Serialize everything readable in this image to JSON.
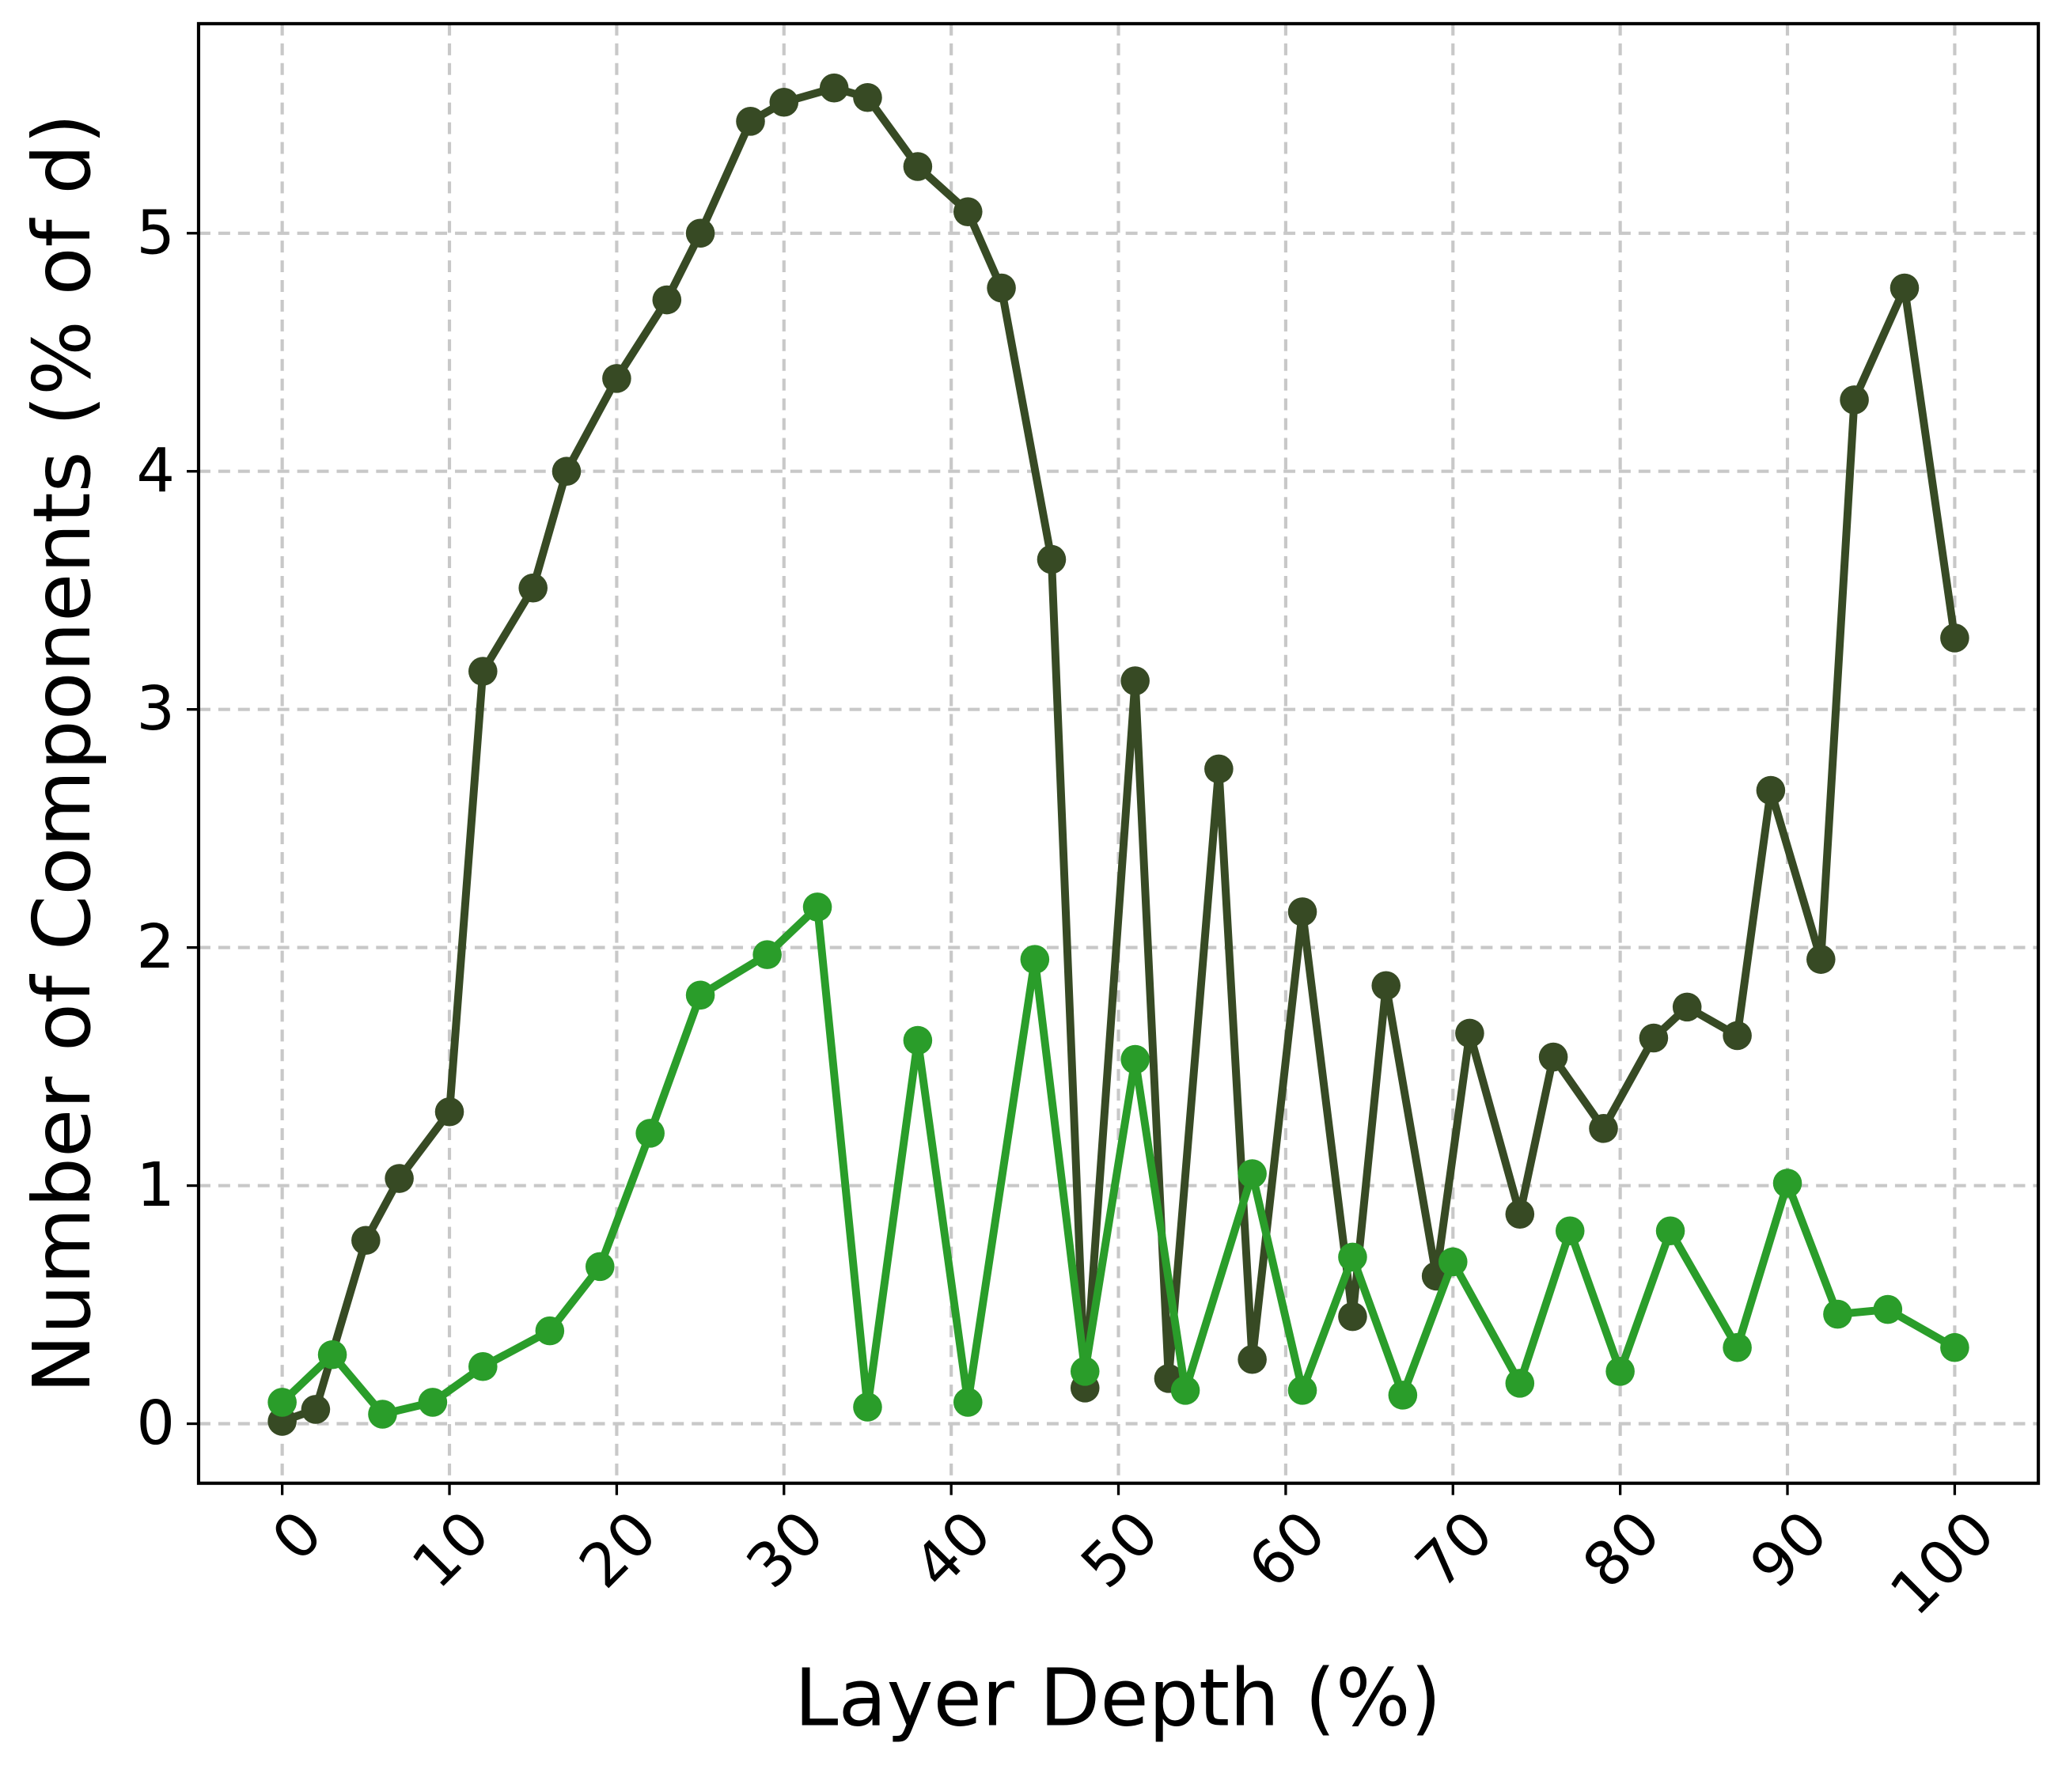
{
  "chart_data": {
    "type": "line",
    "xlabel": "Layer Depth (%)",
    "ylabel": "Number of Components (% of d)",
    "xlim": [
      -5,
      105
    ],
    "ylim": [
      -0.25,
      5.88
    ],
    "xticks": [
      0,
      10,
      20,
      30,
      40,
      50,
      60,
      70,
      80,
      90,
      100
    ],
    "yticks": [
      0,
      1,
      2,
      3,
      4,
      5
    ],
    "grid": true,
    "series": [
      {
        "color": "#374a24",
        "x": [
          0,
          2,
          5,
          7,
          10,
          12,
          15,
          17,
          20,
          23,
          25,
          28,
          30,
          33,
          35,
          38,
          41,
          43,
          46,
          48,
          51,
          53,
          56,
          58,
          61,
          64,
          66,
          69,
          71,
          74,
          76,
          79,
          82,
          84,
          87,
          89,
          92,
          94,
          97,
          100
        ],
        "values": [
          0.01,
          0.06,
          0.77,
          1.03,
          1.31,
          3.16,
          3.51,
          4.0,
          4.39,
          4.72,
          5.0,
          5.47,
          5.55,
          5.61,
          5.57,
          5.28,
          5.09,
          4.77,
          3.63,
          0.15,
          3.12,
          0.19,
          2.75,
          0.27,
          2.15,
          0.45,
          1.84,
          0.62,
          1.64,
          0.88,
          1.54,
          1.24,
          1.62,
          1.75,
          1.63,
          2.66,
          1.95,
          4.3,
          4.77,
          3.3
        ]
      },
      {
        "color": "#2a9d2a",
        "x": [
          0,
          3,
          6,
          9,
          12,
          16,
          19,
          22,
          25,
          29,
          32,
          35,
          38,
          41,
          45,
          48,
          51,
          54,
          58,
          61,
          64,
          67,
          70,
          74,
          77,
          80,
          83,
          87,
          90,
          93,
          96,
          100
        ],
        "values": [
          0.09,
          0.29,
          0.04,
          0.09,
          0.24,
          0.39,
          0.66,
          1.22,
          1.8,
          1.97,
          2.17,
          0.07,
          1.61,
          0.09,
          1.95,
          0.22,
          1.53,
          0.14,
          1.05,
          0.14,
          0.7,
          0.12,
          0.68,
          0.17,
          0.81,
          0.22,
          0.81,
          0.32,
          1.01,
          0.46,
          0.48,
          0.32
        ]
      }
    ]
  }
}
